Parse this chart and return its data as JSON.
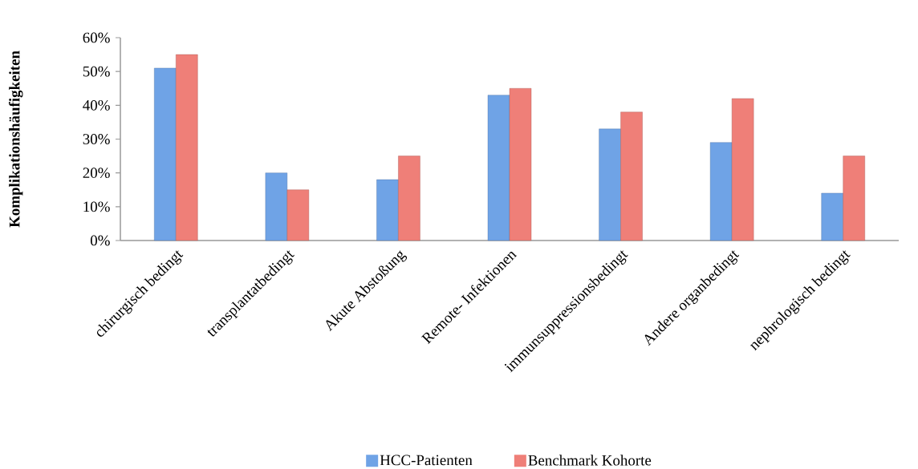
{
  "chart_data": {
    "type": "bar",
    "ylabel": "Komplikationshäufigkeiten",
    "categories": [
      "chirurgisch bedingt",
      "transplantatbedingt",
      "Akute Abstoßung",
      "Remote- Infektionen",
      "immunsuppressionsbedingt",
      "Andere organbedingt",
      "nephrologisch bedingt"
    ],
    "series": [
      {
        "name": "HCC-Patienten",
        "color": "#6fa3e6",
        "values": [
          51,
          20,
          18,
          43,
          33,
          29,
          14
        ]
      },
      {
        "name": "Benchmark Kohorte",
        "color": "#ef7f78",
        "values": [
          55,
          15,
          25,
          45,
          38,
          42,
          25
        ]
      }
    ],
    "ylim": [
      0,
      60
    ],
    "yticks": [
      {
        "value": 0,
        "label": "0%"
      },
      {
        "value": 10,
        "label": "10%"
      },
      {
        "value": 20,
        "label": "20%"
      },
      {
        "value": 30,
        "label": "30%"
      },
      {
        "value": 40,
        "label": "40%"
      },
      {
        "value": 50,
        "label": "50%"
      },
      {
        "value": 60,
        "label": "60%"
      }
    ],
    "grid": false,
    "legend": "bottom"
  }
}
